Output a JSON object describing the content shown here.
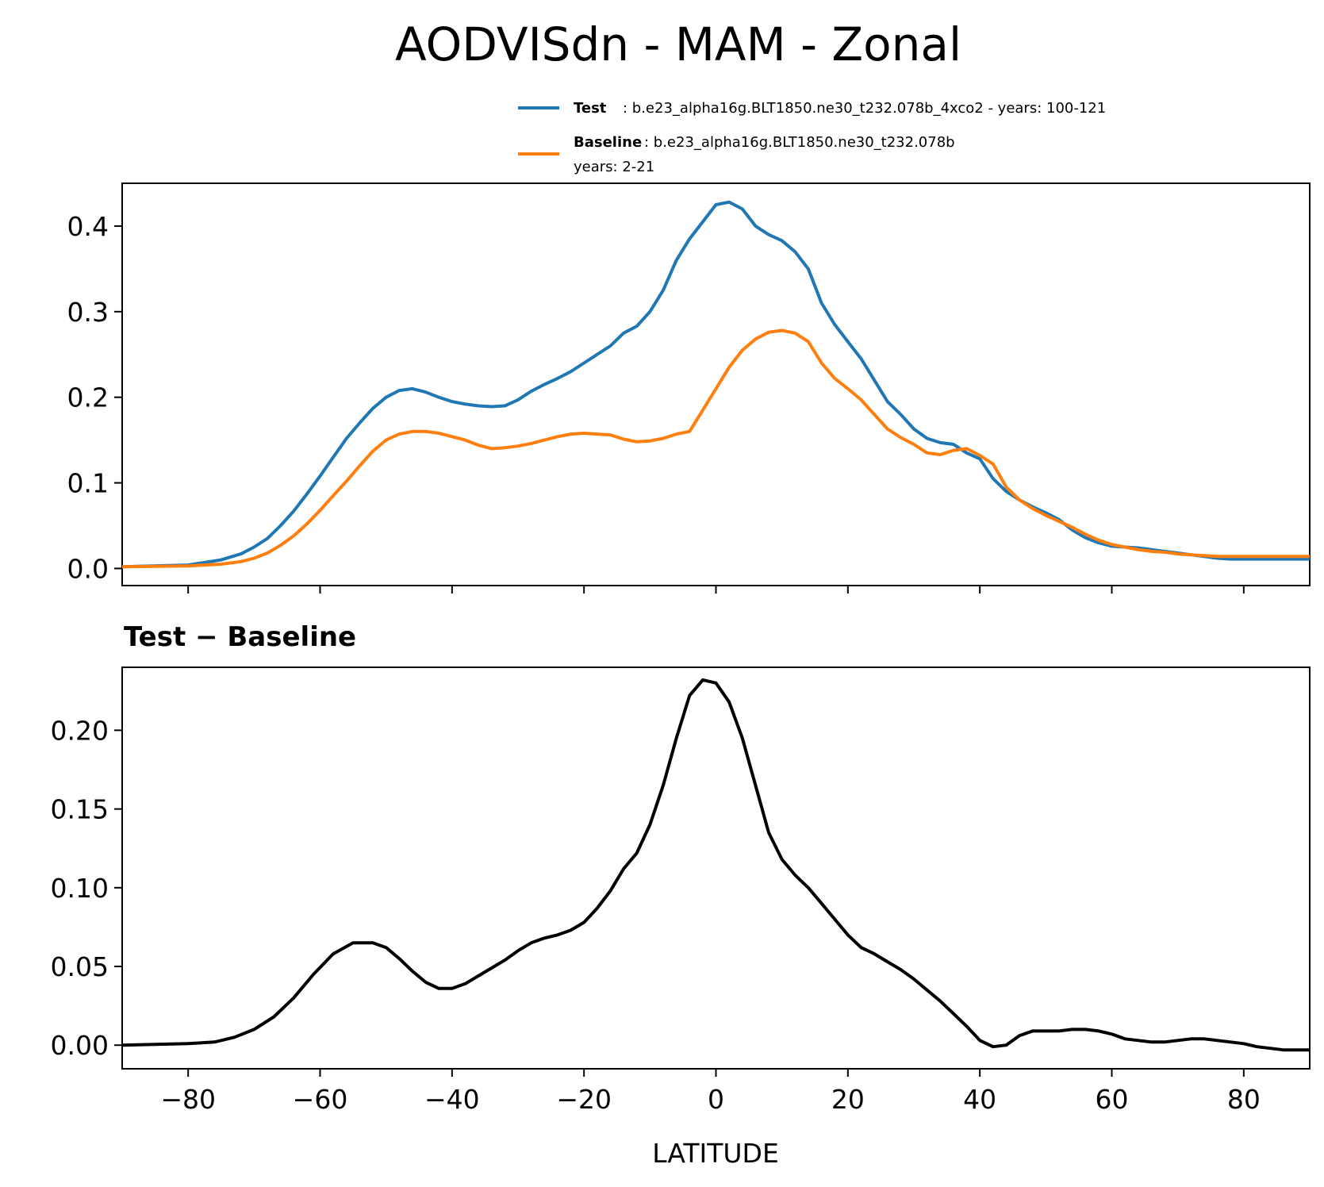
{
  "figure": {
    "title": "AODVISdn - MAM - Zonal",
    "xlabel": "LATITUDE",
    "subtitle": "Test − Baseline"
  },
  "legend": {
    "test_label": "Test",
    "test_text": ": b.e23_alpha16g.BLT1850.ne30_t232.078b_4xco2 - years: 100-121",
    "baseline_label": "Baseline",
    "baseline_text_line1": ": b.e23_alpha16g.BLT1850.ne30_t232.078b",
    "baseline_text_line2": "years: 2-21",
    "placement": "above top plot, right"
  },
  "colors": {
    "test": "#1f77b4",
    "baseline": "#ff7f0e",
    "difference": "#000000"
  },
  "chart_data": [
    {
      "type": "line",
      "xlim": [
        -90,
        90
      ],
      "ylim": [
        -0.02,
        0.45
      ],
      "yticks": [
        0.0,
        0.1,
        0.2,
        0.3,
        0.4
      ],
      "ytick_labels": [
        "0.0",
        "0.1",
        "0.2",
        "0.3",
        "0.4"
      ],
      "xticks": [
        -80,
        -60,
        -40,
        -20,
        0,
        20,
        40,
        60,
        80
      ],
      "grid": false,
      "x": [
        -90,
        -80,
        -75,
        -72,
        -70,
        -68,
        -66,
        -64,
        -62,
        -60,
        -58,
        -56,
        -54,
        -52,
        -50,
        -48,
        -46,
        -44,
        -42,
        -40,
        -38,
        -36,
        -34,
        -32,
        -30,
        -28,
        -26,
        -24,
        -22,
        -20,
        -18,
        -16,
        -14,
        -12,
        -10,
        -8,
        -6,
        -4,
        -2,
        0,
        2,
        4,
        6,
        8,
        10,
        12,
        14,
        16,
        18,
        20,
        22,
        24,
        26,
        28,
        30,
        32,
        34,
        36,
        38,
        40,
        42,
        44,
        46,
        48,
        50,
        52,
        54,
        56,
        58,
        60,
        62,
        64,
        66,
        68,
        70,
        72,
        74,
        76,
        78,
        80,
        82,
        84,
        86,
        88,
        90
      ],
      "series": [
        {
          "name": "Test",
          "values": [
            0.002,
            0.004,
            0.01,
            0.017,
            0.025,
            0.035,
            0.05,
            0.067,
            0.087,
            0.108,
            0.13,
            0.152,
            0.17,
            0.187,
            0.2,
            0.208,
            0.21,
            0.206,
            0.2,
            0.195,
            0.192,
            0.19,
            0.189,
            0.19,
            0.197,
            0.207,
            0.215,
            0.222,
            0.23,
            0.24,
            0.25,
            0.26,
            0.275,
            0.283,
            0.3,
            0.325,
            0.36,
            0.385,
            0.405,
            0.425,
            0.428,
            0.42,
            0.4,
            0.39,
            0.383,
            0.37,
            0.35,
            0.31,
            0.285,
            0.265,
            0.245,
            0.22,
            0.195,
            0.18,
            0.163,
            0.152,
            0.147,
            0.145,
            0.135,
            0.128,
            0.105,
            0.09,
            0.08,
            0.072,
            0.065,
            0.057,
            0.045,
            0.036,
            0.03,
            0.026,
            0.025,
            0.024,
            0.022,
            0.02,
            0.018,
            0.016,
            0.014,
            0.012,
            0.011,
            0.011,
            0.011,
            0.011,
            0.011,
            0.011,
            0.011
          ]
        },
        {
          "name": "Baseline",
          "values": [
            0.002,
            0.003,
            0.005,
            0.008,
            0.012,
            0.018,
            0.027,
            0.038,
            0.052,
            0.068,
            0.085,
            0.102,
            0.12,
            0.137,
            0.15,
            0.157,
            0.16,
            0.16,
            0.158,
            0.154,
            0.15,
            0.144,
            0.14,
            0.141,
            0.143,
            0.146,
            0.15,
            0.154,
            0.157,
            0.158,
            0.157,
            0.156,
            0.151,
            0.148,
            0.149,
            0.152,
            0.157,
            0.16,
            0.185,
            0.21,
            0.235,
            0.255,
            0.268,
            0.276,
            0.278,
            0.275,
            0.265,
            0.24,
            0.222,
            0.21,
            0.197,
            0.18,
            0.163,
            0.153,
            0.145,
            0.135,
            0.133,
            0.138,
            0.14,
            0.132,
            0.122,
            0.095,
            0.08,
            0.07,
            0.062,
            0.055,
            0.048,
            0.04,
            0.033,
            0.028,
            0.025,
            0.022,
            0.02,
            0.019,
            0.017,
            0.016,
            0.015,
            0.014,
            0.014,
            0.014,
            0.014,
            0.014,
            0.014,
            0.014,
            0.014
          ]
        }
      ]
    },
    {
      "type": "line",
      "title": "Test − Baseline",
      "xlabel": "LATITUDE",
      "xlim": [
        -90,
        90
      ],
      "ylim": [
        -0.015,
        0.24
      ],
      "yticks": [
        0.0,
        0.05,
        0.1,
        0.15,
        0.2
      ],
      "ytick_labels": [
        "0.00",
        "0.05",
        "0.10",
        "0.15",
        "0.20"
      ],
      "xticks": [
        -80,
        -60,
        -40,
        -20,
        0,
        20,
        40,
        60,
        80
      ],
      "xtick_labels": [
        "−80",
        "−60",
        "−40",
        "−20",
        "0",
        "20",
        "40",
        "60",
        "80"
      ],
      "grid": false,
      "x": [
        -90,
        -80,
        -76,
        -73,
        -70,
        -67,
        -64,
        -61,
        -58,
        -55,
        -52,
        -50,
        -48,
        -46,
        -44,
        -42,
        -40,
        -38,
        -36,
        -34,
        -32,
        -30,
        -28,
        -26,
        -24,
        -22,
        -20,
        -18,
        -16,
        -14,
        -12,
        -10,
        -8,
        -6,
        -4,
        -2,
        0,
        2,
        4,
        6,
        8,
        10,
        12,
        14,
        16,
        18,
        20,
        22,
        24,
        26,
        28,
        30,
        32,
        34,
        36,
        38,
        40,
        42,
        44,
        46,
        48,
        50,
        52,
        54,
        56,
        58,
        60,
        62,
        64,
        66,
        68,
        70,
        72,
        74,
        76,
        78,
        80,
        82,
        84,
        86,
        88,
        90
      ],
      "series": [
        {
          "values": [
            0.0,
            0.001,
            0.002,
            0.005,
            0.01,
            0.018,
            0.03,
            0.045,
            0.058,
            0.065,
            0.065,
            0.062,
            0.055,
            0.047,
            0.04,
            0.036,
            0.036,
            0.039,
            0.044,
            0.049,
            0.054,
            0.06,
            0.065,
            0.068,
            0.07,
            0.073,
            0.078,
            0.087,
            0.098,
            0.112,
            0.122,
            0.14,
            0.165,
            0.195,
            0.222,
            0.232,
            0.23,
            0.218,
            0.195,
            0.165,
            0.135,
            0.118,
            0.108,
            0.1,
            0.09,
            0.08,
            0.07,
            0.062,
            0.058,
            0.053,
            0.048,
            0.042,
            0.035,
            0.028,
            0.02,
            0.012,
            0.003,
            -0.001,
            0.0,
            0.006,
            0.009,
            0.009,
            0.009,
            0.01,
            0.01,
            0.009,
            0.007,
            0.004,
            0.003,
            0.002,
            0.002,
            0.003,
            0.004,
            0.004,
            0.003,
            0.002,
            0.001,
            -0.001,
            -0.002,
            -0.003,
            -0.003,
            -0.003
          ]
        }
      ]
    }
  ]
}
